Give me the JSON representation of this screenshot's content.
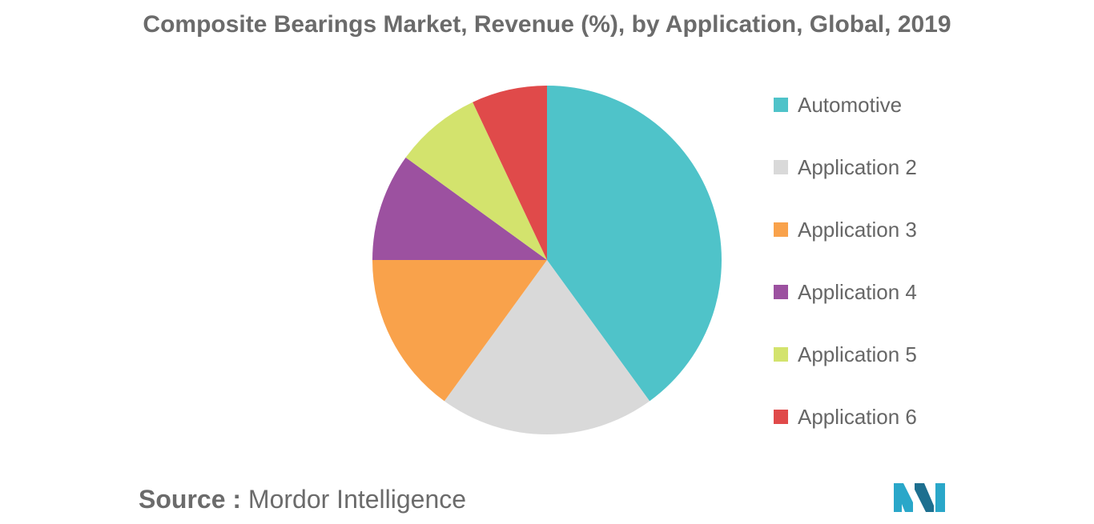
{
  "chart_data": {
    "type": "pie",
    "title": "Composite Bearings Market, Revenue (%), by Application, Global, 2019",
    "categories": [
      "Automotive",
      "Application 2",
      "Application 3",
      "Application 4",
      "Application 5",
      "Application 6"
    ],
    "values": [
      40,
      20,
      15,
      10,
      8,
      7
    ],
    "colors": [
      "#4fc3c9",
      "#d9d9d9",
      "#f9a24b",
      "#9c51a0",
      "#d3e36d",
      "#e04a4a"
    ],
    "start_angle_deg": 0,
    "direction": "clockwise",
    "legend_position": "right"
  },
  "source": {
    "label": "Source :",
    "text": "Mordor Intelligence"
  },
  "logo": {
    "colors": [
      "#2aa7c9",
      "#1d6f8f"
    ]
  }
}
